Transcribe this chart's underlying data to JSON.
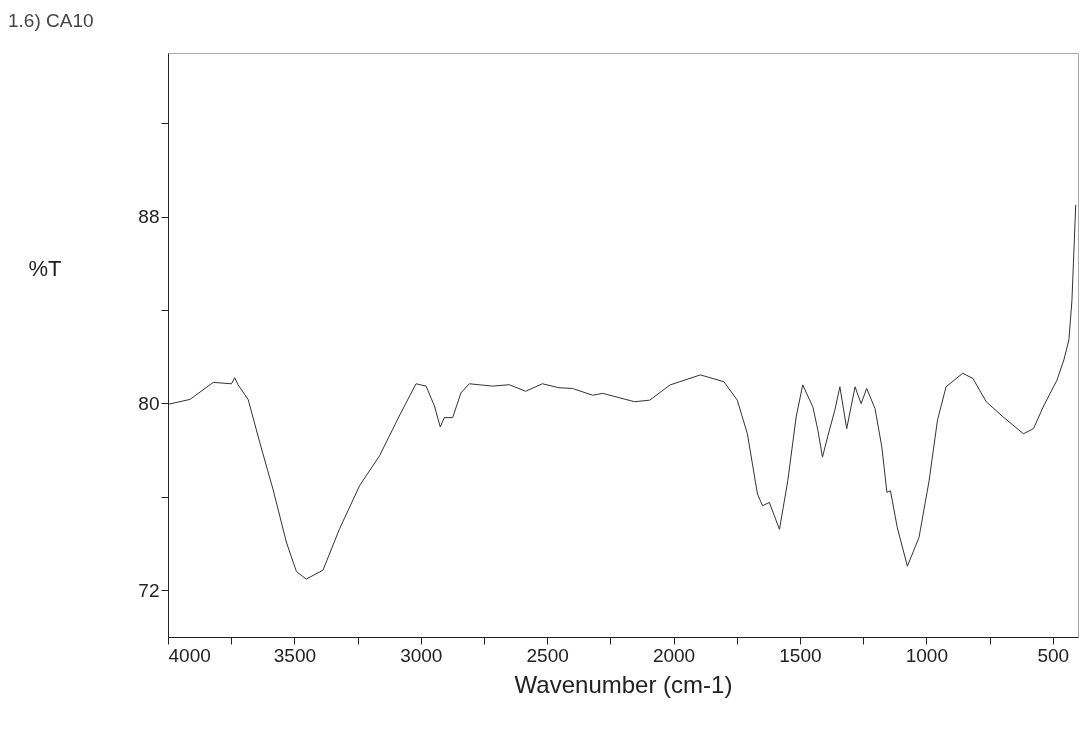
{
  "chart_data": {
    "type": "line",
    "title": "1.6) CA10",
    "xlabel": "Wavenumber (cm-1)",
    "ylabel": "%T",
    "xlim": [
      4000,
      400
    ],
    "ylim": [
      70,
      95
    ],
    "xticks": [
      4000,
      {
        "value": 3750,
        "label": null
      },
      3500,
      {
        "value": 3250,
        "label": null
      },
      3000,
      {
        "value": 2750,
        "label": null
      },
      2500,
      {
        "value": 2250,
        "label": null
      },
      2000,
      {
        "value": 1750,
        "label": null
      },
      1500,
      {
        "value": 1250,
        "label": null
      },
      1000,
      {
        "value": 750,
        "label": null
      },
      500
    ],
    "yticks": [
      72,
      {
        "value": 76,
        "label": null
      },
      80,
      {
        "value": 84,
        "label": null
      },
      88,
      {
        "value": 92,
        "label": null
      }
    ],
    "grid": false,
    "x": [
      4000,
      3913,
      3821,
      3749,
      3736,
      3723,
      3683,
      3637,
      3584,
      3532,
      3492,
      3453,
      3387,
      3321,
      3242,
      3163,
      3085,
      3019,
      2979,
      2946,
      2923,
      2907,
      2874,
      2841,
      2808,
      2716,
      2650,
      2585,
      2519,
      2453,
      2400,
      2320,
      2280,
      2154,
      2094,
      2014,
      1894,
      1801,
      1748,
      1708,
      1668,
      1648,
      1621,
      1581,
      1548,
      1515,
      1489,
      1449,
      1429,
      1411,
      1389,
      1362,
      1342,
      1315,
      1282,
      1258,
      1236,
      1203,
      1176,
      1156,
      1142,
      1115,
      1075,
      1029,
      989,
      956,
      922,
      856,
      816,
      763,
      696,
      616,
      576,
      536,
      483,
      456,
      436,
      424,
      409
    ],
    "series": [
      {
        "color": "#333333",
        "values": [
          79.96,
          80.17,
          80.9,
          80.84,
          81.1,
          80.8,
          80.17,
          78.33,
          76.3,
          74.07,
          72.8,
          72.48,
          72.86,
          74.64,
          76.48,
          77.76,
          79.46,
          80.84,
          80.74,
          79.89,
          78.99,
          79.39,
          79.39,
          80.45,
          80.84,
          80.74,
          80.8,
          80.52,
          80.84,
          80.67,
          80.64,
          80.35,
          80.43,
          80.07,
          80.14,
          80.79,
          81.22,
          80.93,
          80.14,
          78.7,
          76.12,
          75.62,
          75.76,
          74.61,
          76.69,
          79.42,
          80.79,
          79.85,
          78.85,
          77.7,
          78.63,
          79.71,
          80.71,
          78.92,
          80.71,
          79.99,
          80.64,
          79.78,
          78.13,
          76.19,
          76.26,
          74.69,
          73.03,
          74.26,
          76.69,
          79.28,
          80.71,
          81.29,
          81.07,
          80.07,
          79.42,
          78.7,
          78.92,
          79.89,
          81.0,
          81.86,
          82.72,
          84.4,
          88.5
        ]
      }
    ]
  }
}
